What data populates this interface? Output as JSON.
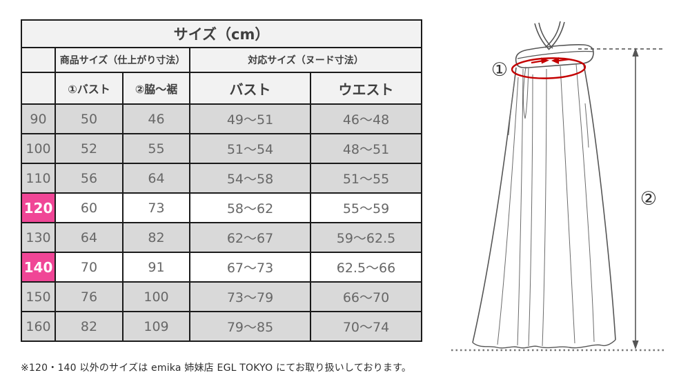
{
  "table": {
    "title": "サイズ（cm）",
    "group_headers": {
      "product": "商品サイズ（仕上がり寸法）",
      "nude": "対応サイズ（ヌード寸法）"
    },
    "columns": {
      "bust_product": "①バスト",
      "side_hem": "②脇～裾",
      "bust_nude": "バスト",
      "waist_nude": "ウエスト"
    },
    "rows": [
      {
        "size": "90",
        "values": [
          "50",
          "46",
          "49～51",
          "46～48"
        ],
        "highlight": false,
        "shaded": true
      },
      {
        "size": "100",
        "values": [
          "52",
          "55",
          "51～54",
          "48～51"
        ],
        "highlight": false,
        "shaded": true
      },
      {
        "size": "110",
        "values": [
          "56",
          "64",
          "54～58",
          "51～55"
        ],
        "highlight": false,
        "shaded": true
      },
      {
        "size": "120",
        "values": [
          "60",
          "73",
          "58～62",
          "55～59"
        ],
        "highlight": true,
        "shaded": false
      },
      {
        "size": "130",
        "values": [
          "64",
          "82",
          "62～67",
          "59～62.5"
        ],
        "highlight": false,
        "shaded": true
      },
      {
        "size": "140",
        "values": [
          "70",
          "91",
          "67～73",
          "62.5～66"
        ],
        "highlight": true,
        "shaded": false
      },
      {
        "size": "150",
        "values": [
          "76",
          "100",
          "73～79",
          "66～70"
        ],
        "highlight": false,
        "shaded": true
      },
      {
        "size": "160",
        "values": [
          "82",
          "109",
          "79～85",
          "70～74"
        ],
        "highlight": false,
        "shaded": true
      }
    ]
  },
  "note": "※120・140 以外のサイズは emika 姉妹店 EGL TOKYO にてお取り扱いしております。",
  "diagram": {
    "label_bust": "①",
    "label_length": "②"
  },
  "colors": {
    "highlight_pink": "#f04696",
    "shaded_row": "#d9d9d9",
    "header_bg": "#f2f2f2",
    "border": "#1a1a1a",
    "accent_red": "#c40000",
    "line_gray": "#555555",
    "text_gray": "#676767"
  }
}
